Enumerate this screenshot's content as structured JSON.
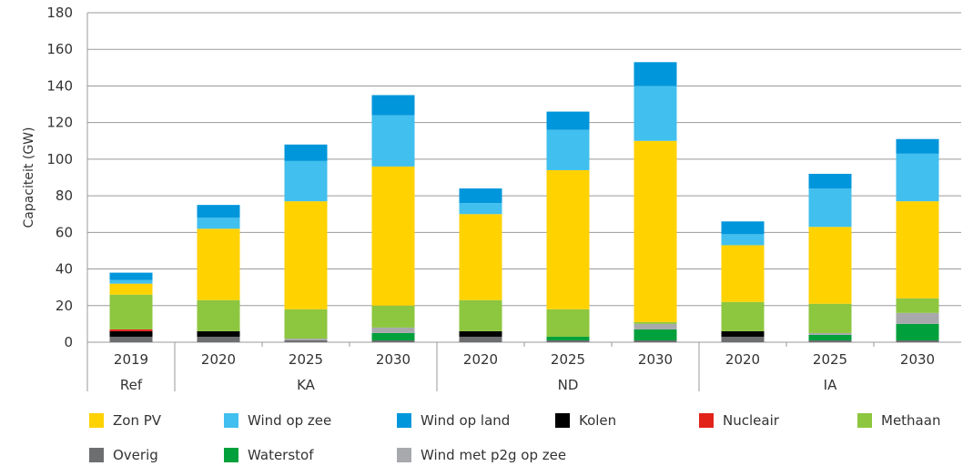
{
  "chart_data": {
    "type": "bar",
    "stacked": true,
    "ylabel": "Capaciteit (GW)",
    "ylim": [
      0,
      180
    ],
    "yticks": [
      0,
      20,
      40,
      60,
      80,
      100,
      120,
      140,
      160,
      180
    ],
    "grid": true,
    "legend_position": "bottom",
    "groups": [
      {
        "label": "Ref",
        "categories": [
          "2019"
        ]
      },
      {
        "label": "KA",
        "categories": [
          "2020",
          "2025",
          "2030"
        ]
      },
      {
        "label": "ND",
        "categories": [
          "2020",
          "2025",
          "2030"
        ]
      },
      {
        "label": "IA",
        "categories": [
          "2020",
          "2025",
          "2030"
        ]
      }
    ],
    "categories": [
      "2019",
      "2020",
      "2025",
      "2030",
      "2020",
      "2025",
      "2030",
      "2020",
      "2025",
      "2030"
    ],
    "series": [
      {
        "name": "Overig",
        "color": "#6d6e70",
        "values": [
          3,
          3,
          1,
          1,
          3,
          1,
          1,
          3,
          1,
          1
        ]
      },
      {
        "name": "Waterstof",
        "color": "#00a03c",
        "values": [
          0,
          0,
          0,
          4,
          0,
          2,
          6,
          0,
          3,
          9
        ]
      },
      {
        "name": "Wind met p2g op zee",
        "color": "#a7a9ac",
        "values": [
          0,
          0,
          1,
          3,
          0,
          0,
          3,
          0,
          1,
          6
        ]
      },
      {
        "name": "Kolen",
        "color": "#000000",
        "values": [
          3,
          3,
          0,
          0,
          3,
          0,
          0,
          3,
          0,
          0
        ]
      },
      {
        "name": "Nucleair",
        "color": "#e2231a",
        "values": [
          1,
          0,
          0,
          0,
          0,
          0,
          0,
          0,
          0,
          0
        ]
      },
      {
        "name": "Methaan",
        "color": "#8dc63f",
        "values": [
          19,
          17,
          16,
          12,
          17,
          15,
          1,
          16,
          16,
          8
        ]
      },
      {
        "name": "Zon PV",
        "color": "#ffd200",
        "values": [
          6,
          39,
          59,
          76,
          47,
          76,
          99,
          31,
          42,
          53
        ]
      },
      {
        "name": "Wind op zee",
        "color": "#41bfee",
        "values": [
          2,
          6,
          22,
          28,
          6,
          22,
          30,
          6,
          21,
          26
        ]
      },
      {
        "name": "Wind op land",
        "color": "#0096db",
        "values": [
          4,
          7,
          9,
          11,
          8,
          10,
          13,
          7,
          8,
          8
        ]
      }
    ]
  },
  "legend": [
    {
      "label": "Zon PV",
      "color": "#ffd200"
    },
    {
      "label": "Wind op zee",
      "color": "#41bfee"
    },
    {
      "label": "Wind op land",
      "color": "#0096db"
    },
    {
      "label": "Kolen",
      "color": "#000000"
    },
    {
      "label": "Nucleair",
      "color": "#e2231a"
    },
    {
      "label": "Methaan",
      "color": "#8dc63f"
    },
    {
      "label": "Overig",
      "color": "#6d6e70"
    },
    {
      "label": "Waterstof",
      "color": "#00a03c"
    },
    {
      "label": "Wind met p2g op zee",
      "color": "#a7a9ac"
    }
  ]
}
